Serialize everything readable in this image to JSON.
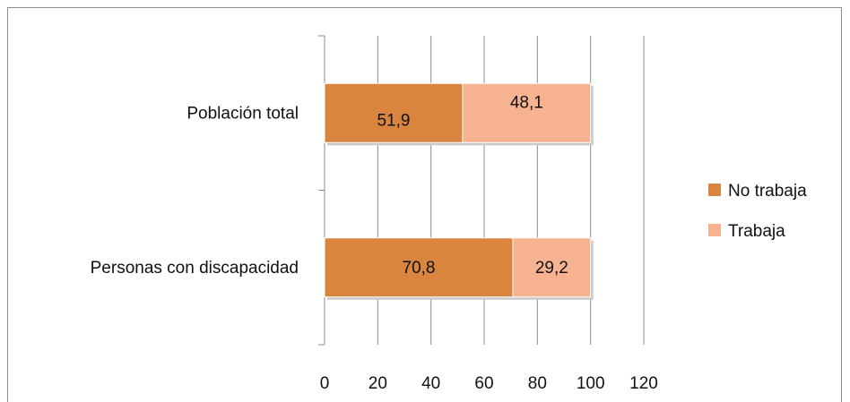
{
  "chart_data": {
    "type": "bar",
    "orientation": "horizontal",
    "stacked": true,
    "categories": [
      "Población total",
      "Personas con discapacidad"
    ],
    "series": [
      {
        "name": "No trabaja",
        "values": [
          51.9,
          70.8
        ],
        "labels": [
          "51,9",
          "70,8"
        ],
        "color": "#d9843f"
      },
      {
        "name": "Trabaja",
        "values": [
          48.1,
          29.2
        ],
        "labels": [
          "48,1",
          "29,2"
        ],
        "color": "#f7b290"
      }
    ],
    "xlim": [
      0,
      120
    ],
    "x_ticks": [
      0,
      20,
      40,
      60,
      80,
      100,
      120
    ],
    "x_tick_labels": [
      "0",
      "20",
      "40",
      "60",
      "80",
      "100",
      "120"
    ],
    "grid": "vertical",
    "legend_position": "right"
  }
}
